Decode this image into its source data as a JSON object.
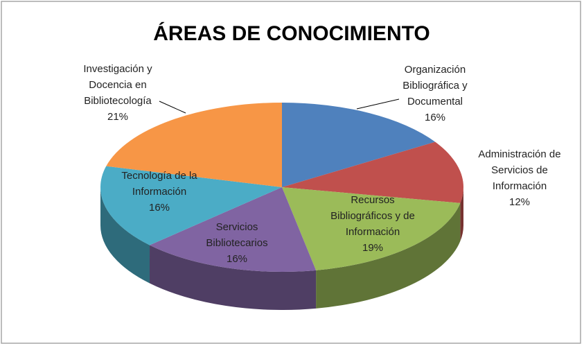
{
  "chart_data": {
    "type": "pie3d",
    "title": "ÁREAS DE CONOCIMIENTO",
    "categories": [
      "Organización\nBibliográfica y\nDocumental",
      "Administración de\nServicios de\nInformación",
      "Recursos\nBibliográficos y de\nInformación",
      "Servicios\nBibliotecarios",
      "Tecnología de la\nInformación",
      "Investigación y\nDocencia en\nBibliotecología"
    ],
    "values": [
      16,
      12,
      19,
      16,
      16,
      21
    ],
    "value_labels": [
      "16%",
      "12%",
      "19%",
      "16%",
      "16%",
      "21%"
    ],
    "colors": [
      "#4f81bd",
      "#c0504d",
      "#9bbb59",
      "#8064a2",
      "#4bacc6",
      "#f79646"
    ]
  }
}
